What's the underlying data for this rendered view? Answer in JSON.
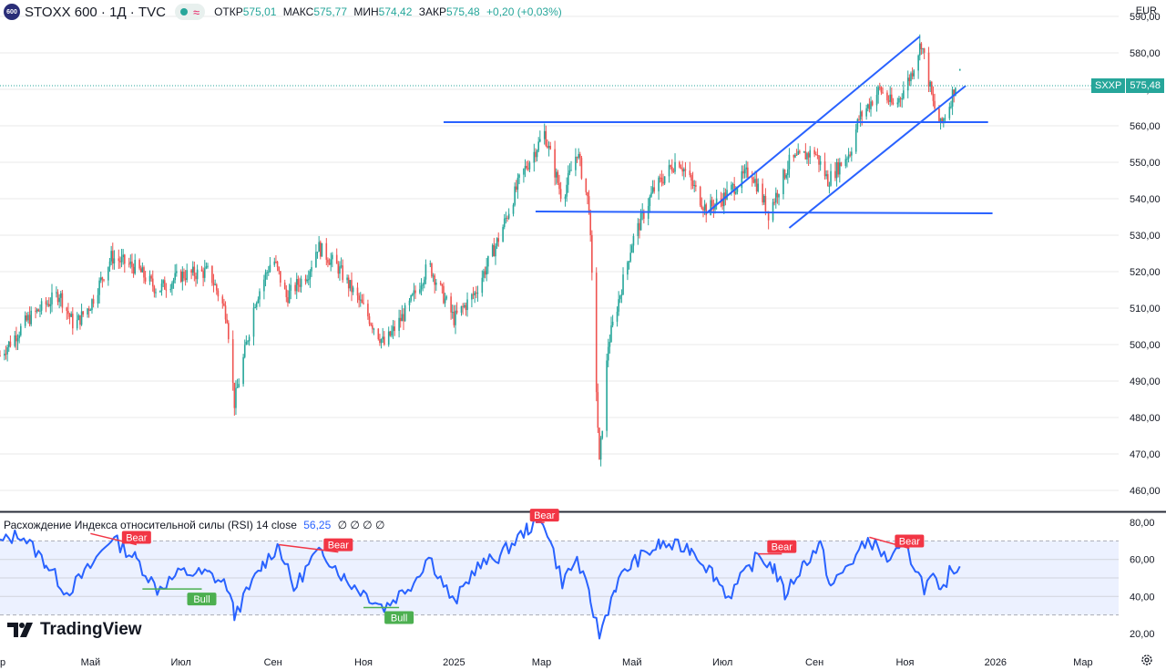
{
  "header": {
    "badge": "600",
    "title": "STOXX 600 · 1Д · TVC",
    "wave": "≈",
    "open_label": "ОТКР",
    "open": "575,01",
    "high_label": "МАКС",
    "high": "575,77",
    "low_label": "МИН",
    "low": "574,42",
    "close_label": "ЗАКР",
    "close": "575,48",
    "change": "+0,20 (+0,03%)",
    "currency": "EUR"
  },
  "price_tag": {
    "symbol": "SXXP",
    "value": "575,48"
  },
  "rsi_header": {
    "name": "Расхождение Индекса относительной силы (RSI) 14 close",
    "value": "56,25",
    "extras": "∅ ∅ ∅ ∅"
  },
  "logo": "TradingView",
  "colors": {
    "up": "#26a69a",
    "down": "#ef5350",
    "trend": "#2962ff",
    "rsi": "#2962ff",
    "bear": "#f23645",
    "bull": "#4caf50"
  },
  "chart_data": {
    "type": "candlestick",
    "y_unit": "EUR",
    "ylim": [
      455,
      592
    ],
    "yticks": [
      "460,00",
      "470,00",
      "480,00",
      "490,00",
      "500,00",
      "510,00",
      "520,00",
      "530,00",
      "540,00",
      "550,00",
      "560,00",
      "570,00",
      "580,00",
      "590,00"
    ],
    "ytick_values": [
      460,
      470,
      480,
      490,
      500,
      510,
      520,
      530,
      540,
      550,
      560,
      570,
      580,
      590
    ],
    "x_range": [
      "2024-03-01",
      "2026-03-25"
    ],
    "xticks": [
      {
        "label": "ар",
        "date": "2024-03-01"
      },
      {
        "label": "Май",
        "date": "2024-05-01"
      },
      {
        "label": "Июл",
        "date": "2024-07-01"
      },
      {
        "label": "Сен",
        "date": "2024-09-01"
      },
      {
        "label": "Ноя",
        "date": "2024-11-01"
      },
      {
        "label": "2025",
        "date": "2025-01-01"
      },
      {
        "label": "Мар",
        "date": "2025-03-01"
      },
      {
        "label": "Май",
        "date": "2025-05-01"
      },
      {
        "label": "Июл",
        "date": "2025-07-01"
      },
      {
        "label": "Сен",
        "date": "2025-09-01"
      },
      {
        "label": "Ноя",
        "date": "2025-11-01"
      },
      {
        "label": "2026",
        "date": "2026-01-01"
      },
      {
        "label": "Мар",
        "date": "2026-03-01"
      }
    ],
    "price_path": [
      [
        "2024-03-01",
        497
      ],
      [
        "2024-03-20",
        507
      ],
      [
        "2024-04-10",
        514
      ],
      [
        "2024-04-20",
        505
      ],
      [
        "2024-05-01",
        511
      ],
      [
        "2024-05-15",
        524
      ],
      [
        "2024-06-01",
        521
      ],
      [
        "2024-06-15",
        515
      ],
      [
        "2024-07-01",
        519
      ],
      [
        "2024-07-20",
        520
      ],
      [
        "2024-08-01",
        508
      ],
      [
        "2024-08-06",
        484
      ],
      [
        "2024-08-20",
        512
      ],
      [
        "2024-09-01",
        524
      ],
      [
        "2024-09-10",
        513
      ],
      [
        "2024-09-25",
        520
      ],
      [
        "2024-10-01",
        527
      ],
      [
        "2024-10-15",
        521
      ],
      [
        "2024-11-01",
        510
      ],
      [
        "2024-11-15",
        500
      ],
      [
        "2024-12-01",
        510
      ],
      [
        "2024-12-15",
        522
      ],
      [
        "2025-01-01",
        507
      ],
      [
        "2025-01-15",
        514
      ],
      [
        "2025-02-01",
        530
      ],
      [
        "2025-02-15",
        546
      ],
      [
        "2025-03-03",
        558
      ],
      [
        "2025-03-15",
        540
      ],
      [
        "2025-03-25",
        553
      ],
      [
        "2025-04-02",
        538
      ],
      [
        "2025-04-07",
        488
      ],
      [
        "2025-04-09",
        467
      ],
      [
        "2025-04-15",
        500
      ],
      [
        "2025-05-01",
        528
      ],
      [
        "2025-05-15",
        542
      ],
      [
        "2025-06-01",
        551
      ],
      [
        "2025-06-20",
        537
      ],
      [
        "2025-07-01",
        540
      ],
      [
        "2025-07-20",
        548
      ],
      [
        "2025-08-01",
        536
      ],
      [
        "2025-08-15",
        550
      ],
      [
        "2025-09-01",
        553
      ],
      [
        "2025-09-10",
        545
      ],
      [
        "2025-09-25",
        553
      ],
      [
        "2025-10-01",
        562
      ],
      [
        "2025-10-15",
        570
      ],
      [
        "2025-10-25",
        565
      ],
      [
        "2025-11-05",
        574
      ],
      [
        "2025-11-12",
        583
      ],
      [
        "2025-11-20",
        566
      ],
      [
        "2025-11-25",
        560
      ],
      [
        "2025-12-01",
        566
      ],
      [
        "2025-12-08",
        575.48
      ]
    ],
    "trend_lines": [
      {
        "name": "resistance",
        "from": [
          "2024-12-25",
          561
        ],
        "to": [
          "2025-12-27",
          561
        ]
      },
      {
        "name": "support",
        "from": [
          "2025-02-25",
          536.5
        ],
        "to": [
          "2025-12-30",
          536
        ]
      },
      {
        "name": "channel-upper",
        "from": [
          "2025-06-20",
          536
        ],
        "to": [
          "2025-11-11",
          584.5
        ]
      },
      {
        "name": "channel-lower",
        "from": [
          "2025-08-15",
          532
        ],
        "to": [
          "2025-12-12",
          571
        ]
      }
    ],
    "rsi": {
      "ylim": [
        15,
        85
      ],
      "yticks": [
        "20,00",
        "40,00",
        "60,00",
        "80,00"
      ],
      "ytick_values": [
        20,
        40,
        60,
        80
      ],
      "band": [
        30,
        70
      ],
      "guides": [
        40,
        50,
        60
      ],
      "current": 56.25,
      "path": [
        [
          "2024-03-01",
          69
        ],
        [
          "2024-03-15",
          74
        ],
        [
          "2024-04-01",
          58
        ],
        [
          "2024-04-15",
          42
        ],
        [
          "2024-05-01",
          56
        ],
        [
          "2024-05-15",
          72
        ],
        [
          "2024-06-01",
          60
        ],
        [
          "2024-06-15",
          44
        ],
        [
          "2024-07-01",
          53
        ],
        [
          "2024-07-20",
          52
        ],
        [
          "2024-08-01",
          46
        ],
        [
          "2024-08-06",
          30
        ],
        [
          "2024-08-25",
          57
        ],
        [
          "2024-09-05",
          68
        ],
        [
          "2024-09-15",
          44
        ],
        [
          "2024-09-28",
          61
        ],
        [
          "2024-10-05",
          64
        ],
        [
          "2024-10-20",
          49
        ],
        [
          "2024-11-05",
          40
        ],
        [
          "2024-11-15",
          34
        ],
        [
          "2024-12-05",
          48
        ],
        [
          "2024-12-15",
          62
        ],
        [
          "2025-01-01",
          36
        ],
        [
          "2025-01-15",
          55
        ],
        [
          "2025-02-01",
          62
        ],
        [
          "2025-02-20",
          77
        ],
        [
          "2025-03-03",
          80
        ],
        [
          "2025-03-15",
          48
        ],
        [
          "2025-03-25",
          60
        ],
        [
          "2025-04-03",
          38
        ],
        [
          "2025-04-09",
          19
        ],
        [
          "2025-04-20",
          46
        ],
        [
          "2025-05-01",
          58
        ],
        [
          "2025-05-20",
          68
        ],
        [
          "2025-06-10",
          66
        ],
        [
          "2025-06-25",
          52
        ],
        [
          "2025-07-05",
          40
        ],
        [
          "2025-07-25",
          62
        ],
        [
          "2025-08-05",
          55
        ],
        [
          "2025-08-12",
          41
        ],
        [
          "2025-08-25",
          58
        ],
        [
          "2025-09-05",
          68
        ],
        [
          "2025-09-12",
          45
        ],
        [
          "2025-09-25",
          58
        ],
        [
          "2025-10-08",
          71
        ],
        [
          "2025-10-20",
          60
        ],
        [
          "2025-11-01",
          66
        ],
        [
          "2025-11-08",
          56
        ],
        [
          "2025-11-14",
          45
        ],
        [
          "2025-11-20",
          50
        ],
        [
          "2025-11-25",
          40
        ],
        [
          "2025-12-02",
          55
        ],
        [
          "2025-12-08",
          56.25
        ]
      ],
      "signals": [
        {
          "label": "Bear",
          "type": "bear",
          "from": [
            "2024-05-01",
            74
          ],
          "to": [
            "2024-06-01",
            68
          ]
        },
        {
          "label": "Bull",
          "type": "bull",
          "from": [
            "2024-06-05",
            44
          ],
          "to": [
            "2024-07-15",
            44
          ]
        },
        {
          "label": "Bear",
          "type": "bear",
          "from": [
            "2024-09-05",
            68
          ],
          "to": [
            "2024-10-15",
            64
          ]
        },
        {
          "label": "Bull",
          "type": "bull",
          "from": [
            "2024-11-01",
            34
          ],
          "to": [
            "2024-11-25",
            34
          ]
        },
        {
          "label": "Bear",
          "type": "bear",
          "from": [
            "2025-02-25",
            80
          ],
          "to": [
            "2025-03-03",
            80
          ]
        },
        {
          "label": "Bear",
          "type": "bear",
          "from": [
            "2025-07-25",
            63
          ],
          "to": [
            "2025-08-10",
            63
          ]
        },
        {
          "label": "Bear",
          "type": "bear",
          "from": [
            "2025-10-08",
            72
          ],
          "to": [
            "2025-11-04",
            66
          ]
        }
      ]
    }
  }
}
